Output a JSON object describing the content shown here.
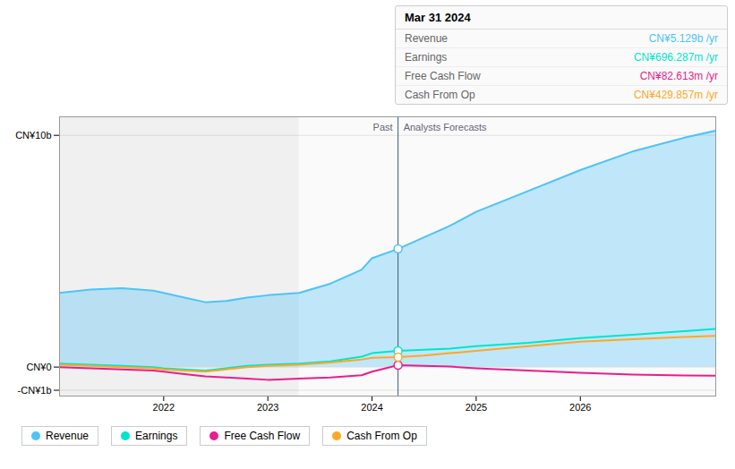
{
  "chart_data": {
    "type": "line",
    "x": [
      2021.0,
      2021.3,
      2021.6,
      2021.9,
      2022.0,
      2022.2,
      2022.4,
      2022.6,
      2022.8,
      2023.0,
      2023.3,
      2023.6,
      2023.9,
      2024.0,
      2024.25,
      2024.5,
      2024.75,
      2025.0,
      2025.5,
      2026.0,
      2026.5,
      2027.0,
      2027.3
    ],
    "series": [
      {
        "name": "Revenue",
        "color": "#4fc3f7",
        "type": "area",
        "values": [
          3.2,
          3.35,
          3.4,
          3.3,
          3.2,
          3.0,
          2.8,
          2.85,
          3.0,
          3.1,
          3.2,
          3.6,
          4.2,
          4.7,
          5.1,
          5.6,
          6.1,
          6.7,
          7.6,
          8.5,
          9.3,
          9.9,
          10.2
        ]
      },
      {
        "name": "Earnings",
        "color": "#00e5cc",
        "type": "line",
        "values": [
          0.15,
          0.1,
          0.05,
          0.0,
          -0.05,
          -0.1,
          -0.15,
          -0.05,
          0.05,
          0.1,
          0.15,
          0.25,
          0.45,
          0.6,
          0.7,
          0.75,
          0.8,
          0.9,
          1.05,
          1.25,
          1.4,
          1.55,
          1.65
        ]
      },
      {
        "name": "Free Cash Flow",
        "color": "#e91e8c",
        "type": "line",
        "values": [
          0.0,
          -0.05,
          -0.1,
          -0.15,
          -0.2,
          -0.3,
          -0.4,
          -0.45,
          -0.5,
          -0.55,
          -0.5,
          -0.45,
          -0.35,
          -0.2,
          0.08,
          0.05,
          0.02,
          -0.05,
          -0.15,
          -0.25,
          -0.32,
          -0.36,
          -0.37
        ]
      },
      {
        "name": "Cash From Op",
        "color": "#ffa726",
        "type": "line",
        "values": [
          0.1,
          0.05,
          0.0,
          -0.05,
          -0.1,
          -0.15,
          -0.2,
          -0.1,
          0.0,
          0.05,
          0.1,
          0.2,
          0.32,
          0.4,
          0.43,
          0.5,
          0.6,
          0.7,
          0.9,
          1.1,
          1.2,
          1.3,
          1.35
        ]
      }
    ],
    "xlim": [
      2021.0,
      2027.3
    ],
    "xticks": [
      2022,
      2023,
      2024,
      2025,
      2026
    ],
    "ylim": [
      -1.25,
      10.8
    ],
    "yticks": [
      {
        "value": 10,
        "label": "CN¥10b"
      },
      {
        "value": 0,
        "label": "CN¥0"
      },
      {
        "value": -1,
        "label": "-CN¥1b"
      }
    ],
    "grid": true,
    "shade_split": 2023.3,
    "divider": {
      "x": 2024.25,
      "labels": [
        "Past",
        "Analysts Forecasts"
      ],
      "values": [
        5.1,
        0.7,
        0.08,
        0.43
      ]
    },
    "tooltip": {
      "title": "Mar 31 2024",
      "texts": [
        "CN¥5.129b /yr",
        "CN¥696.287m /yr",
        "CN¥82.613m /yr",
        "CN¥429.857m /yr"
      ]
    },
    "legend": "bottom"
  }
}
